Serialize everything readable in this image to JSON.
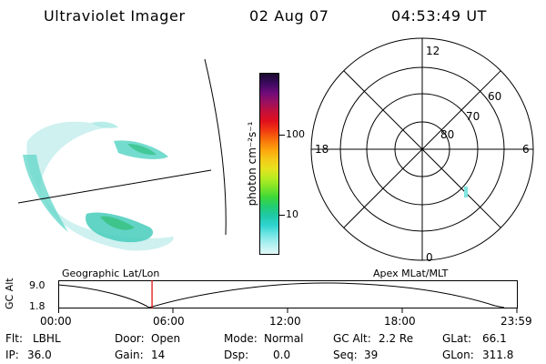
{
  "header": {
    "instrument": "Ultraviolet Imager",
    "date": "02 Aug 07",
    "time": "04:53:49 UT"
  },
  "colorbar": {
    "unit_label": "photon cm⁻²s⁻¹",
    "ticks": [
      "100",
      "10"
    ],
    "colors": [
      "#1a0a2e",
      "#3b0a5e",
      "#6e0b7a",
      "#9a1060",
      "#c4103a",
      "#e0101c",
      "#f23a10",
      "#f8720c",
      "#fca30c",
      "#f6c818",
      "#e6e21e",
      "#b8ec22",
      "#7fe428",
      "#3ed838",
      "#22cc72",
      "#20c9a8",
      "#30d4d0",
      "#74e6e6",
      "#b2f0f0",
      "#e2f8f8"
    ]
  },
  "polar_plot": {
    "mlt_labels": [
      "12",
      "18",
      "6",
      "0"
    ],
    "mlat_labels": [
      "60",
      "70",
      "80"
    ]
  },
  "track_panel": {
    "left_title": "Geographic Lat/Lon",
    "right_title": "Apex MLat/MLT",
    "y_axis_label": "GC Alt",
    "y_ticks": [
      "9.0",
      "1.8"
    ],
    "x_ticks": [
      "00:00",
      "06:00",
      "12:00",
      "18:00",
      "23:59"
    ],
    "current_time_fraction": 0.2045
  },
  "status": {
    "row1": [
      {
        "key": "Flt:",
        "value": "LBHL"
      },
      {
        "key": "Door:",
        "value": "Open"
      },
      {
        "key": "Mode:",
        "value": "Normal"
      },
      {
        "key": "GC Alt:",
        "value": "2.2 Re"
      },
      {
        "key": "GLat:",
        "value": "66.1"
      }
    ],
    "row2": [
      {
        "key": "IP:",
        "value": "36.0"
      },
      {
        "key": "Gain:",
        "value": "14"
      },
      {
        "key": "Dsp:",
        "value": "0.0"
      },
      {
        "key": "Seq:",
        "value": "39"
      },
      {
        "key": "GLon:",
        "value": "311.8"
      }
    ]
  }
}
